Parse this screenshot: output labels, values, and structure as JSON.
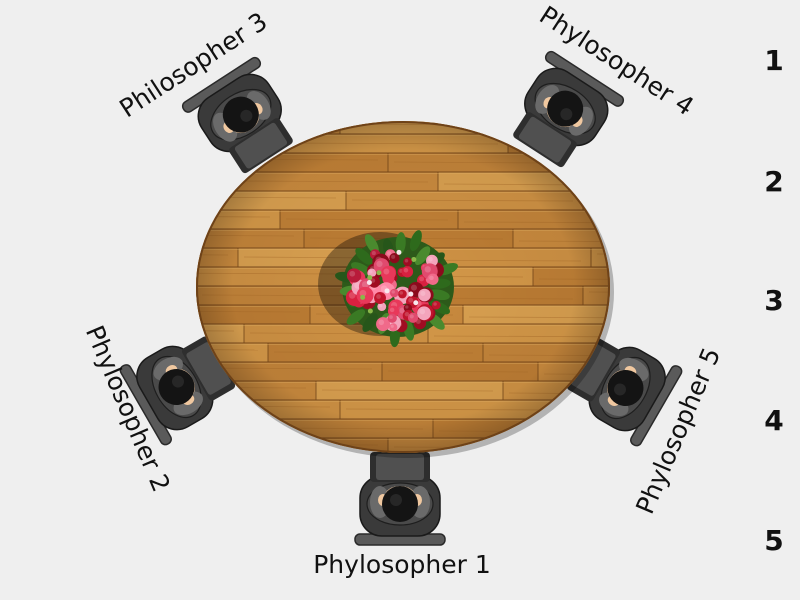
{
  "scene": {
    "table": {
      "wood_color": "#c8883c",
      "wood_dark": "#8a5420",
      "wood_light": "#e0a85a",
      "edge_color": "#6e4218"
    },
    "centerpiece": "flower-bouquet",
    "philosophers": [
      {
        "label": "Phylosopher 1",
        "icon": "seated-person-top-view"
      },
      {
        "label": "Phylosopher 2",
        "icon": "seated-person-top-view"
      },
      {
        "label": "Philosopher 3",
        "icon": "seated-person-top-view"
      },
      {
        "label": "Phylosopher 4",
        "icon": "seated-person-top-view"
      },
      {
        "label": "Phylosopher 5",
        "icon": "seated-person-top-view"
      }
    ]
  },
  "sidebar": {
    "numbers": [
      "1",
      "2",
      "3",
      "4",
      "5"
    ]
  },
  "colors": {
    "background": "#efefef",
    "chair": "#3a3a3a",
    "suit": "#4a4a4a",
    "skin": "#f0c8a0",
    "hair": "#141414",
    "text": "#111111"
  }
}
